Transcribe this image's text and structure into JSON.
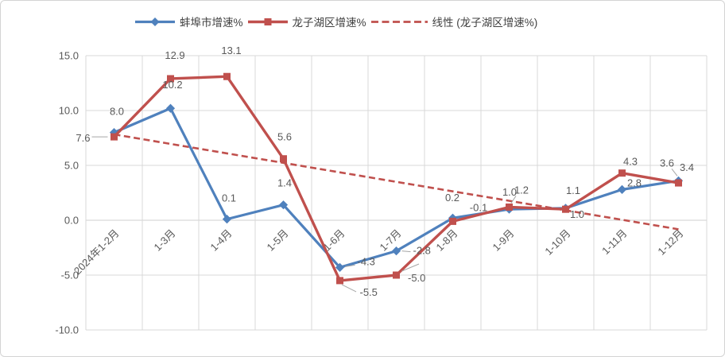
{
  "chart_data": {
    "type": "line",
    "title": "",
    "xlabel": "",
    "ylabel": "",
    "categories": [
      "2024年1-2月",
      "1-3月",
      "1-4月",
      "1-5月",
      "1-6月",
      "1-7月",
      "1-8月",
      "1-9月",
      "1-10月",
      "1-11月",
      "1-12月"
    ],
    "series": [
      {
        "name": "蚌埠市增速%",
        "marker": "diamond",
        "color": "#4F81BD",
        "values": [
          8.0,
          10.2,
          0.1,
          1.4,
          -4.3,
          -2.8,
          0.2,
          1.0,
          1.1,
          2.8,
          3.6
        ]
      },
      {
        "name": "龙子湖区增速%",
        "marker": "square",
        "color": "#C0504D",
        "values": [
          7.6,
          12.9,
          13.1,
          5.6,
          -5.5,
          -5.0,
          -0.1,
          1.2,
          1.0,
          4.3,
          3.4
        ]
      },
      {
        "name": "线性 (龙子湖区增速%)",
        "kind": "linear-trendline",
        "of": "龙子湖区增速%",
        "style": "dashed",
        "color": "#C0504D"
      }
    ],
    "yticks": [
      "15.0",
      "10.0",
      "5.0",
      "0.0",
      "-5.0",
      "-10.0"
    ],
    "ylim": [
      -10,
      15
    ],
    "grid": true,
    "legend_position": "top",
    "colors": {
      "grid": "#D9D9D9",
      "zero_axis": "#CFCFCF",
      "axis_text": "#595959",
      "data_label_text": "#595959",
      "leader_line": "#A6A6A6",
      "legend_text": "#404040"
    }
  }
}
